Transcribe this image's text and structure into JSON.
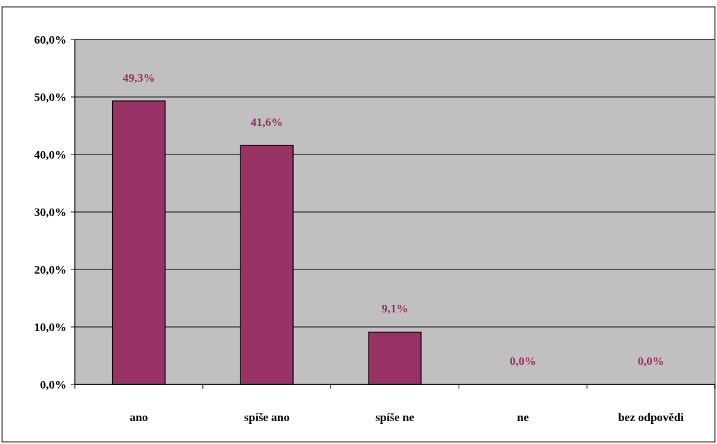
{
  "chart_data": {
    "type": "bar",
    "categories": [
      "ano",
      "spíše ano",
      "spíše ne",
      "ne",
      "bez odpovědi"
    ],
    "values": [
      49.3,
      41.6,
      9.1,
      0,
      0
    ],
    "value_labels": [
      "49,3%",
      "41,6%",
      "9,1%",
      "0,0%",
      "0,0%"
    ],
    "color": "#993366",
    "ylim": [
      0,
      60
    ],
    "yticks": [
      {
        "value": 0,
        "label": "0,0%"
      },
      {
        "value": 10,
        "label": "10,0%"
      },
      {
        "value": 20,
        "label": "20,0%"
      },
      {
        "value": 30,
        "label": "30,0%"
      },
      {
        "value": 40,
        "label": "40,0%"
      },
      {
        "value": 50,
        "label": "50,0%"
      },
      {
        "value": 60,
        "label": "60,0%"
      }
    ],
    "grid": "y"
  }
}
